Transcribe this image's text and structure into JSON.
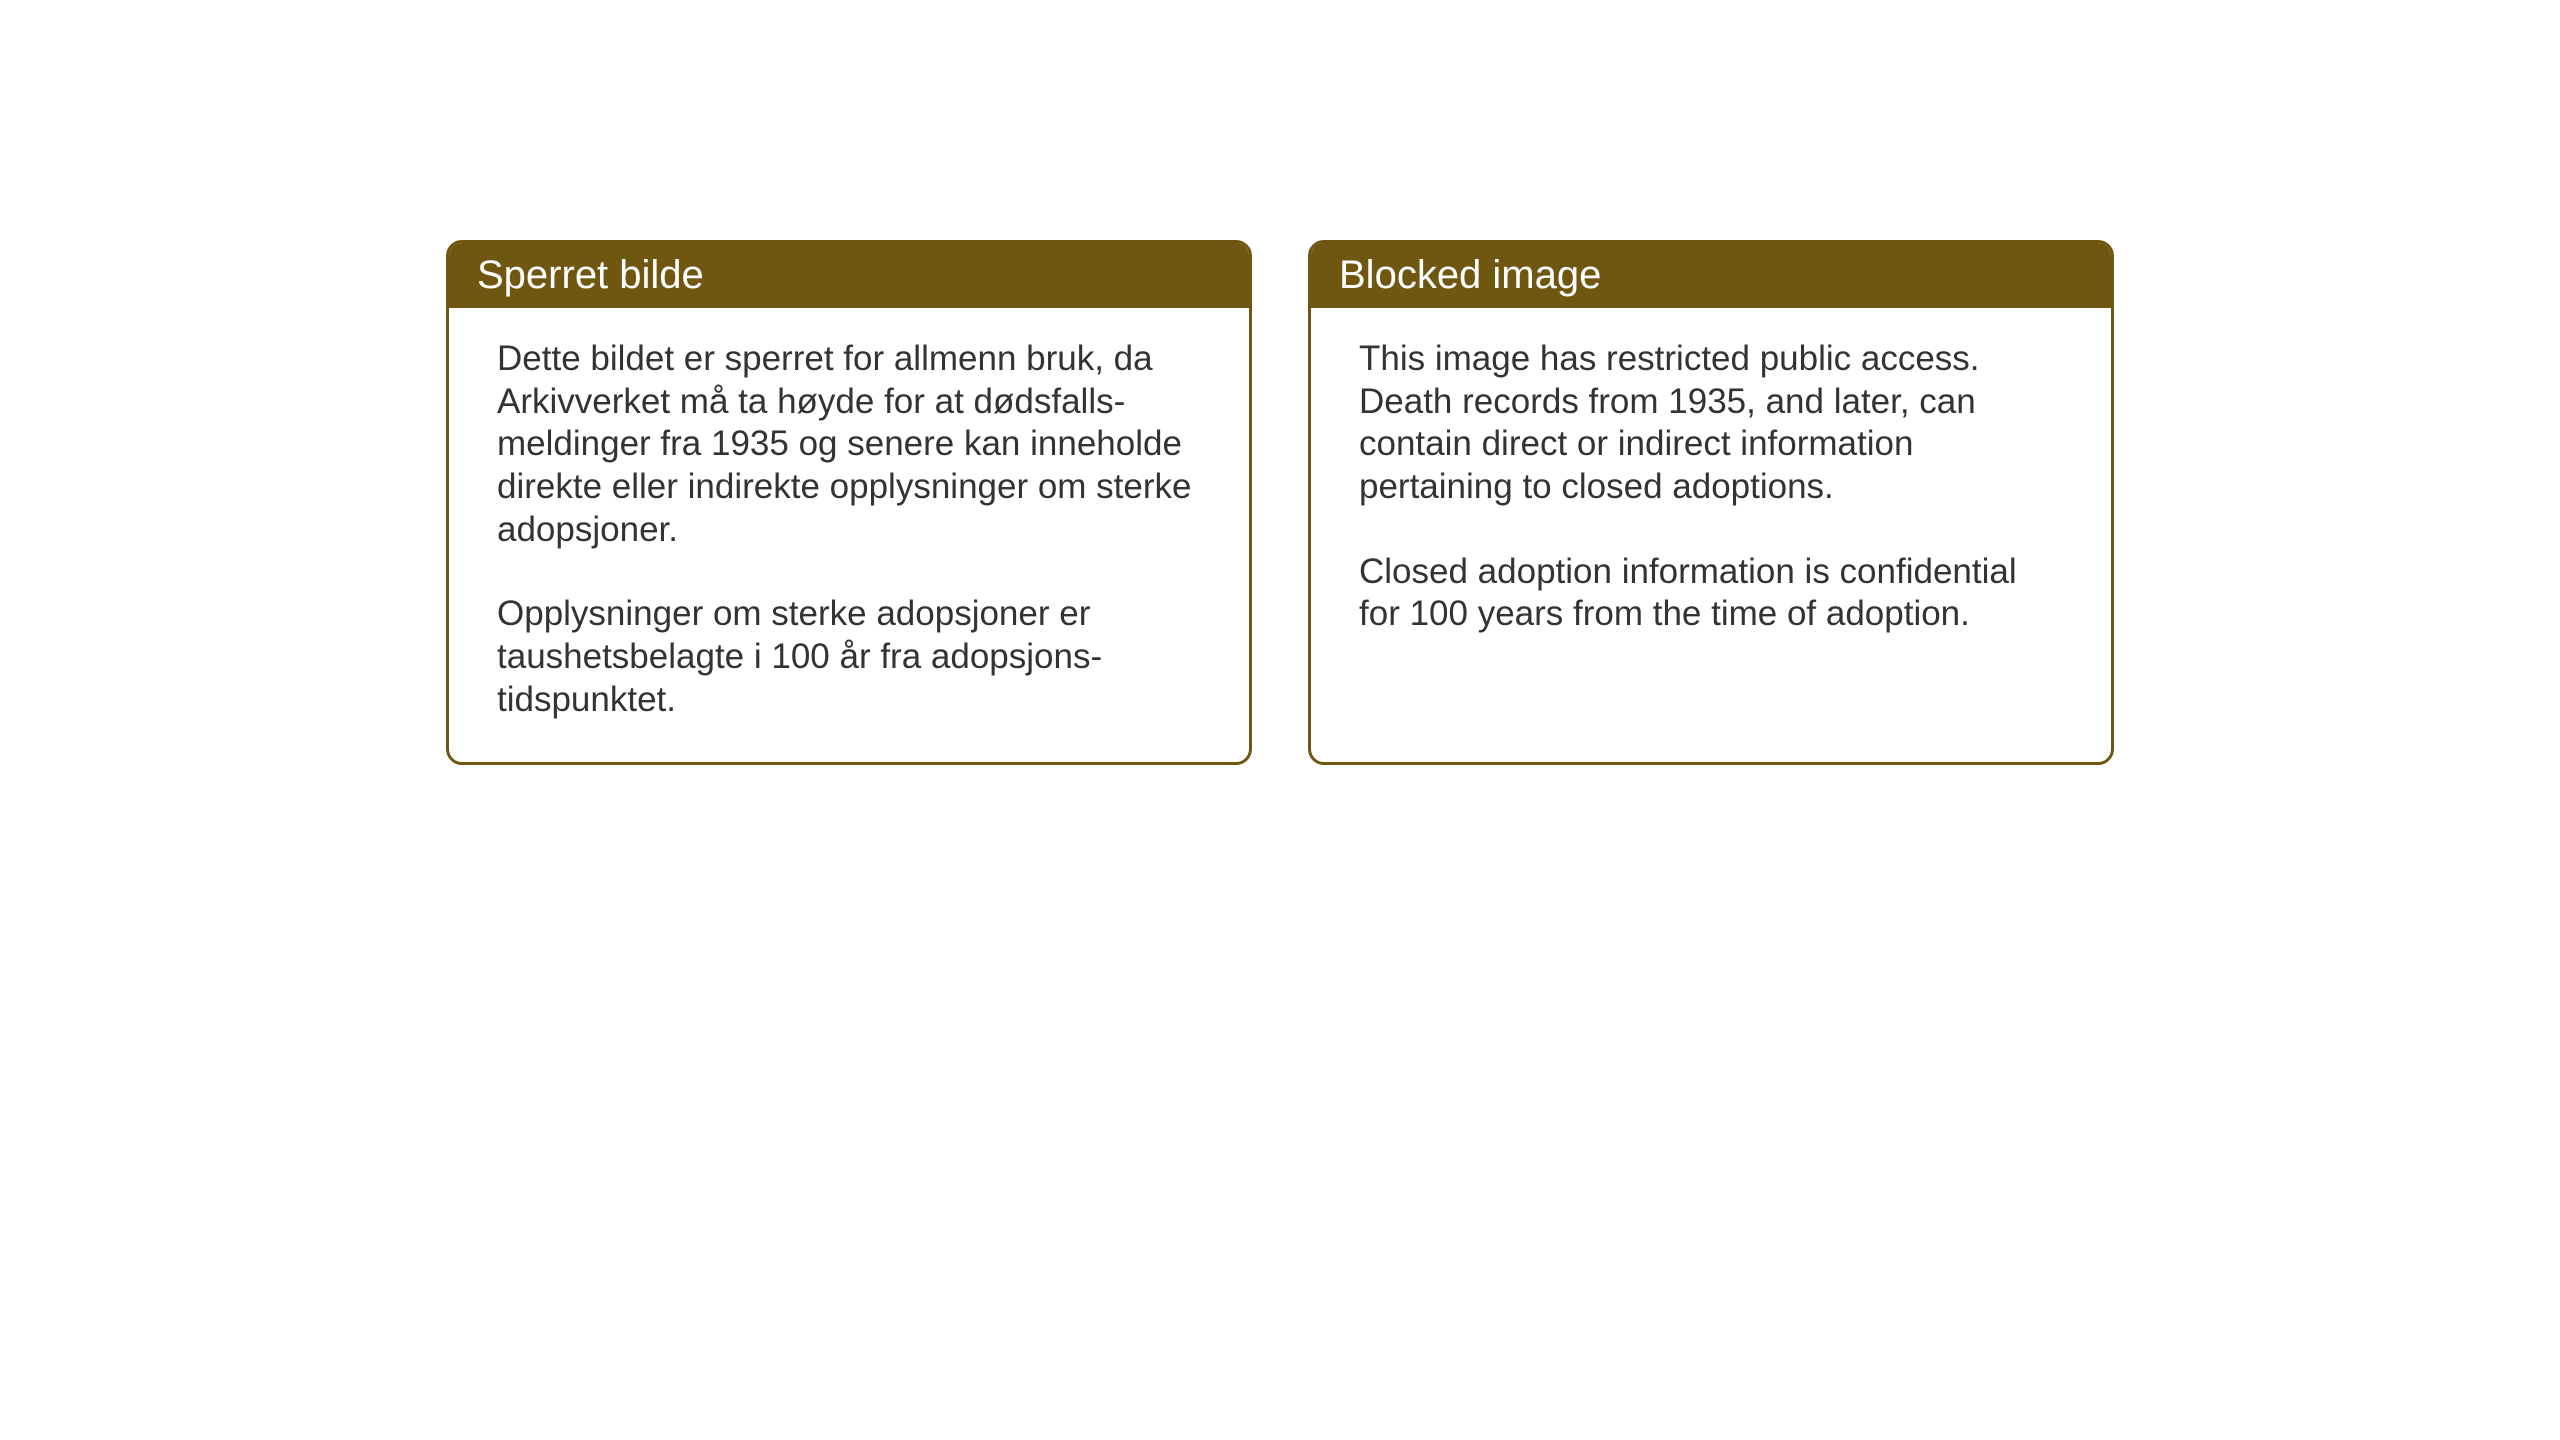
{
  "page": {
    "background_color": "#ffffff"
  },
  "notices": {
    "norwegian": {
      "title": "Sperret bilde",
      "paragraph1": "Dette bildet er sperret for allmenn bruk, da Arkivverket må ta høyde for at dødsfalls-meldinger fra 1935 og senere kan inneholde direkte eller indirekte opplysninger om sterke adopsjoner.",
      "paragraph2": "Opplysninger om sterke adopsjoner er taushetsbelagte i 100 år fra adopsjons-tidspunktet."
    },
    "english": {
      "title": "Blocked image",
      "paragraph1": "This image has restricted public access. Death records from 1935, and later, can contain direct or indirect information pertaining to closed adoptions.",
      "paragraph2": "Closed adoption information is confidential for 100 years from the time of adoption."
    }
  },
  "styling": {
    "header_background": "#6f5712",
    "header_text_color": "#ffffff",
    "border_color": "#6f5712",
    "body_text_color": "#333333",
    "box_background": "#ffffff",
    "header_fontsize": 40,
    "body_fontsize": 35,
    "border_width": 3,
    "border_radius": 16
  }
}
